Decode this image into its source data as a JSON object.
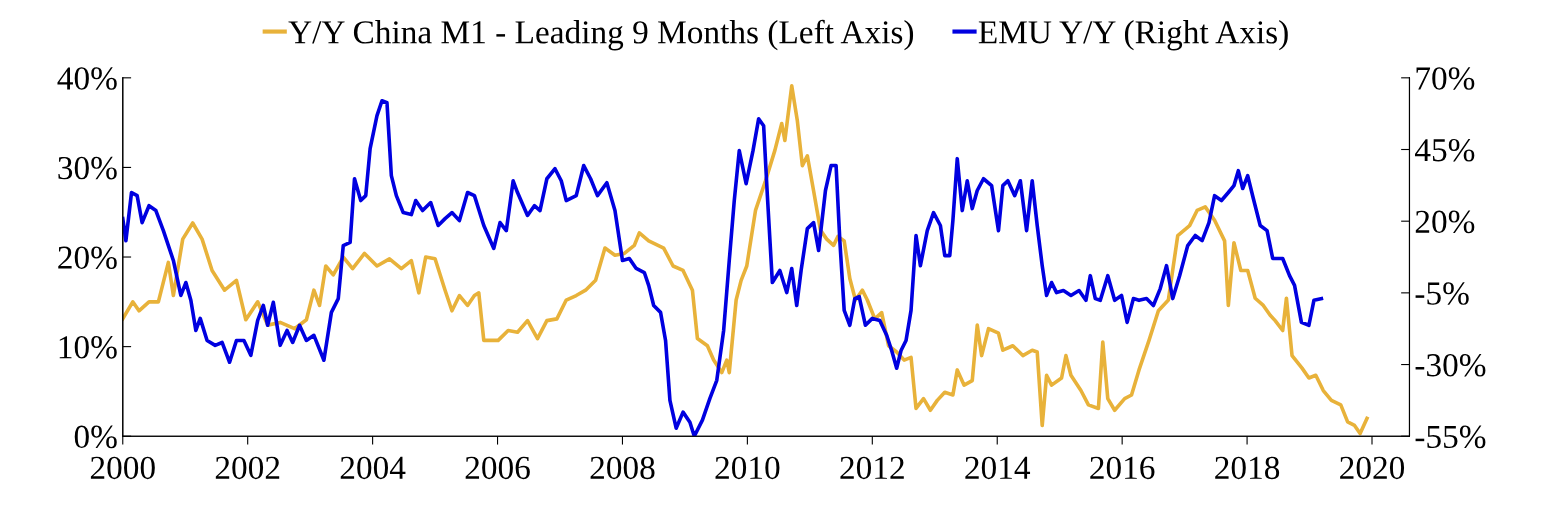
{
  "chart_data": {
    "type": "line",
    "xlim": [
      2000,
      2020.6
    ],
    "xticks": [
      2000,
      2002,
      2004,
      2006,
      2008,
      2010,
      2012,
      2014,
      2016,
      2018,
      2020
    ],
    "ylim": [
      0,
      40
    ],
    "yticks": [
      {
        "value": 0,
        "label": "0%"
      },
      {
        "value": 10,
        "label": "10%"
      },
      {
        "value": 20,
        "label": "20%"
      },
      {
        "value": 30,
        "label": "30%"
      },
      {
        "value": 40,
        "label": "40%"
      }
    ],
    "y2lim": [
      -55,
      70
    ],
    "y2ticks": [
      {
        "value": -55,
        "label": "-55%"
      },
      {
        "value": -30,
        "label": "-30%"
      },
      {
        "value": -5,
        "label": "-5%"
      },
      {
        "value": 20,
        "label": "20%"
      },
      {
        "value": 45,
        "label": "45%"
      },
      {
        "value": 70,
        "label": "70%"
      }
    ],
    "legend": "top",
    "grid": false,
    "marker": "none",
    "line_style": "solid",
    "series": [
      {
        "name": "Y/Y China M1 - Leading 9 Months (Left Axis)",
        "color": "#e8b23a",
        "axis": "y",
        "x": [
          2000.0,
          2000.16,
          2000.26,
          2000.42,
          2000.57,
          2000.73,
          2000.81,
          2000.96,
          2001.12,
          2001.27,
          2001.43,
          2001.63,
          2001.82,
          2001.97,
          2002.16,
          2002.32,
          2002.52,
          2002.75,
          2002.94,
          2003.06,
          2003.15,
          2003.25,
          2003.37,
          2003.53,
          2003.68,
          2003.87,
          2004.07,
          2004.27,
          2004.46,
          2004.62,
          2004.74,
          2004.85,
          2005.0,
          2005.16,
          2005.27,
          2005.39,
          2005.52,
          2005.63,
          2005.7,
          2005.78,
          2006.01,
          2006.17,
          2006.32,
          2006.48,
          2006.64,
          2006.79,
          2006.95,
          2007.1,
          2007.26,
          2007.41,
          2007.57,
          2007.72,
          2007.88,
          2008.03,
          2008.19,
          2008.27,
          2008.42,
          2008.66,
          2008.81,
          2008.97,
          2009.12,
          2009.2,
          2009.36,
          2009.46,
          2009.59,
          2009.67,
          2009.71,
          2009.82,
          2009.9,
          2009.99,
          2010.13,
          2010.29,
          2010.44,
          2010.55,
          2010.6,
          2010.71,
          2010.8,
          2010.88,
          2010.96,
          2011.06,
          2011.17,
          2011.27,
          2011.38,
          2011.45,
          2011.55,
          2011.64,
          2011.73,
          2011.84,
          2011.92,
          2012.04,
          2012.15,
          2012.26,
          2012.39,
          2012.51,
          2012.62,
          2012.7,
          2012.82,
          2012.93,
          2013.04,
          2013.16,
          2013.29,
          2013.36,
          2013.47,
          2013.6,
          2013.68,
          2013.75,
          2013.86,
          2014.02,
          2014.09,
          2014.25,
          2014.41,
          2014.56,
          2014.64,
          2014.72,
          2014.79,
          2014.87,
          2015.03,
          2015.1,
          2015.18,
          2015.34,
          2015.46,
          2015.62,
          2015.69,
          2015.77,
          2015.88,
          2016.04,
          2016.15,
          2016.27,
          2016.43,
          2016.58,
          2016.74,
          2016.89,
          2017.08,
          2017.2,
          2017.33,
          2017.48,
          2017.64,
          2017.7,
          2017.79,
          2017.9,
          2018.01,
          2018.13,
          2018.26,
          2018.37,
          2018.45,
          2018.57,
          2018.63,
          2018.72,
          2018.88,
          2018.99,
          2019.1,
          2019.22,
          2019.35,
          2019.5,
          2019.61,
          2019.72,
          2019.81,
          2019.92
        ],
        "values": [
          13.1,
          15,
          14,
          15,
          15,
          19.4,
          15.7,
          22,
          23.8,
          22,
          18.5,
          16.3,
          17.4,
          13,
          15,
          12.4,
          12.7,
          12,
          13,
          16.3,
          14.6,
          19,
          18,
          20,
          18.7,
          20.4,
          19,
          19.8,
          18.7,
          19.6,
          16,
          20,
          19.8,
          16.3,
          14,
          15.7,
          14.6,
          15.7,
          16,
          10.7,
          10.7,
          11.8,
          11.6,
          12.9,
          10.9,
          12.9,
          13.1,
          15.2,
          15.7,
          16.3,
          17.4,
          21,
          20.2,
          20.4,
          21.3,
          22.7,
          21.8,
          21,
          19,
          18.5,
          16.3,
          10.9,
          10.1,
          8.5,
          7.1,
          8.5,
          7.1,
          15.2,
          17.4,
          19,
          25.2,
          28.5,
          31.9,
          34.9,
          33,
          39.1,
          35.2,
          30.2,
          31.3,
          27.4,
          23,
          22,
          21.3,
          22.3,
          21.8,
          17.6,
          15.2,
          16.3,
          15.2,
          13.1,
          13.8,
          10.1,
          9.4,
          8.5,
          8.8,
          3.1,
          4.2,
          2.9,
          4,
          4.9,
          4.6,
          7.4,
          5.7,
          6.2,
          12.4,
          9,
          12,
          11.5,
          9.6,
          10.1,
          9,
          9.6,
          9.4,
          1.2,
          6.8,
          5.7,
          6.5,
          9,
          6.8,
          5.1,
          3.5,
          3.1,
          10.5,
          4.2,
          2.9,
          4.2,
          4.6,
          7.4,
          10.7,
          14,
          15.2,
          22.4,
          23.5,
          25.2,
          25.6,
          24.1,
          21.8,
          14.6,
          21.6,
          18.5,
          18.5,
          15.4,
          14.6,
          13.5,
          12.9,
          11.8,
          15.4,
          9,
          7.6,
          6.5,
          6.8,
          5.1,
          4,
          3.5,
          1.6,
          1.2,
          0.3,
          2
        ]
      },
      {
        "name": "EMU Y/Y (Right Axis)",
        "color": "#0000e0",
        "axis": "y2",
        "x": [
          2000.0,
          2000.05,
          2000.14,
          2000.23,
          2000.31,
          2000.42,
          2000.53,
          2000.65,
          2000.81,
          2000.93,
          2001.01,
          2001.09,
          2001.17,
          2001.24,
          2001.35,
          2001.48,
          2001.59,
          2001.71,
          2001.82,
          2001.94,
          2002.05,
          2002.16,
          2002.25,
          2002.32,
          2002.41,
          2002.52,
          2002.63,
          2002.72,
          2002.83,
          2002.94,
          2003.06,
          2003.22,
          2003.34,
          2003.45,
          2003.53,
          2003.64,
          2003.71,
          2003.81,
          2003.89,
          2003.96,
          2004.07,
          2004.15,
          2004.23,
          2004.3,
          2004.38,
          2004.49,
          2004.62,
          2004.69,
          2004.8,
          2004.93,
          2005.05,
          2005.16,
          2005.27,
          2005.39,
          2005.52,
          2005.63,
          2005.78,
          2005.94,
          2006.04,
          2006.14,
          2006.25,
          2006.32,
          2006.48,
          2006.59,
          2006.68,
          2006.79,
          2006.92,
          2007.02,
          2007.1,
          2007.26,
          2007.38,
          2007.49,
          2007.6,
          2007.75,
          2007.88,
          2008.0,
          2008.11,
          2008.22,
          2008.35,
          2008.42,
          2008.5,
          2008.61,
          2008.69,
          2008.76,
          2008.86,
          2008.97,
          2009.08,
          2009.15,
          2009.28,
          2009.4,
          2009.51,
          2009.62,
          2009.71,
          2009.79,
          2009.87,
          2009.98,
          2010.09,
          2010.18,
          2010.26,
          2010.32,
          2010.4,
          2010.52,
          2010.63,
          2010.71,
          2010.79,
          2010.86,
          2010.96,
          2011.06,
          2011.14,
          2011.25,
          2011.34,
          2011.42,
          2011.48,
          2011.55,
          2011.64,
          2011.72,
          2011.79,
          2011.89,
          2012.0,
          2012.12,
          2012.23,
          2012.31,
          2012.39,
          2012.46,
          2012.54,
          2012.62,
          2012.7,
          2012.77,
          2012.88,
          2012.98,
          2013.09,
          2013.16,
          2013.24,
          2013.29,
          2013.36,
          2013.44,
          2013.52,
          2013.6,
          2013.68,
          2013.78,
          2013.91,
          2014.02,
          2014.09,
          2014.17,
          2014.28,
          2014.37,
          2014.47,
          2014.56,
          2014.64,
          2014.72,
          2014.79,
          2014.87,
          2014.95,
          2015.06,
          2015.18,
          2015.31,
          2015.42,
          2015.49,
          2015.57,
          2015.65,
          2015.77,
          2015.88,
          2015.99,
          2016.08,
          2016.18,
          2016.27,
          2016.39,
          2016.5,
          2016.61,
          2016.71,
          2016.81,
          2016.92,
          2017.05,
          2017.17,
          2017.28,
          2017.39,
          2017.48,
          2017.59,
          2017.7,
          2017.79,
          2017.86,
          2017.93,
          2018.01,
          2018.1,
          2018.21,
          2018.32,
          2018.41,
          2018.57,
          2018.68,
          2018.76,
          2018.87,
          2018.99,
          2019.07,
          2019.19
        ],
        "values": [
          20.9,
          13.2,
          30,
          28.9,
          19.5,
          25.4,
          23.7,
          16.7,
          6.3,
          -5.9,
          -1.4,
          -7.6,
          -18.1,
          -13.9,
          -21.6,
          -23.3,
          -22.3,
          -29.2,
          -21.6,
          -21.6,
          -26.8,
          -14.6,
          -9.4,
          -16.3,
          -8.3,
          -23.3,
          -18.1,
          -22.3,
          -16.3,
          -21.6,
          -19.8,
          -28.5,
          -11.8,
          -7,
          11.5,
          12.6,
          34.8,
          27.2,
          28.9,
          45.3,
          56.8,
          62,
          61.3,
          35.9,
          28.9,
          23,
          22.3,
          27.2,
          23.7,
          26.5,
          18.5,
          20.9,
          23,
          20.2,
          30,
          28.9,
          18.5,
          10.5,
          19.5,
          16.7,
          34.1,
          30,
          22,
          25.4,
          23.7,
          34.8,
          38.3,
          34.1,
          27.2,
          28.9,
          39.4,
          34.8,
          28.9,
          33.4,
          23.7,
          6.3,
          7,
          3.5,
          2.1,
          -2.4,
          -9.4,
          -11.8,
          -21.6,
          -42.5,
          -52.2,
          -46.6,
          -50.1,
          -55,
          -49.4,
          -41.8,
          -35.5,
          -18.1,
          6.3,
          27.2,
          44.6,
          33.1,
          44.6,
          55.7,
          53.3,
          28.9,
          -1.4,
          2.8,
          -4.9,
          3.5,
          -9.4,
          2.8,
          17.4,
          19.5,
          9.8,
          30.7,
          39.4,
          39.4,
          13.2,
          -11.1,
          -16.3,
          -7,
          -6.3,
          -16.3,
          -13.9,
          -14.6,
          -19.8,
          -25.1,
          -31.3,
          -25.1,
          -21.6,
          -11.1,
          15,
          4.5,
          16.7,
          23,
          18.5,
          8,
          8,
          20.2,
          41.8,
          23.7,
          34.1,
          24.4,
          30.7,
          34.8,
          32.4,
          16.7,
          32.4,
          34.1,
          28.9,
          34.1,
          16.7,
          34.1,
          18.5,
          4.5,
          -5.9,
          -1.4,
          -4.9,
          -4.2,
          -5.9,
          -4.2,
          -7.6,
          1,
          -7,
          -7.6,
          1,
          -7.6,
          -5.9,
          -15.3,
          -7,
          -7.6,
          -7,
          -9.4,
          -3.5,
          4.5,
          -7,
          1,
          11.5,
          15,
          13.2,
          19.5,
          28.9,
          27.2,
          30,
          32.4,
          37.6,
          31.4,
          35.9,
          27.9,
          18.5,
          16.7,
          7,
          7,
          1,
          -2.4,
          -15.3,
          -16.3,
          -7.6,
          -7
        ]
      }
    ]
  }
}
